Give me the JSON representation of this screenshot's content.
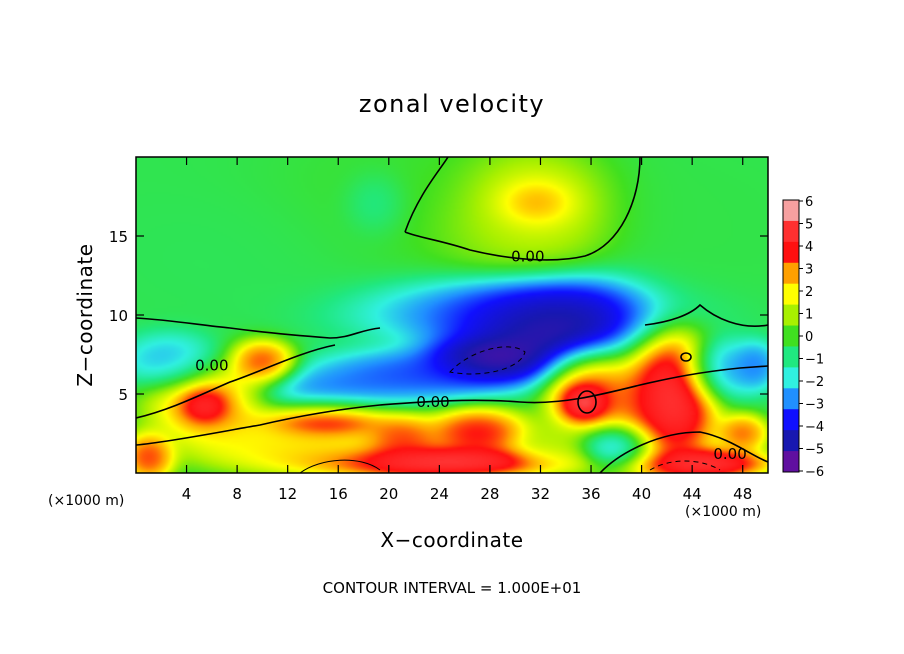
{
  "chart_data": {
    "type": "heatmap",
    "title": "zonal velocity",
    "xlabel": "X−coordinate",
    "ylabel": "Z−coordinate",
    "x_unit_left": "(×1000 m)",
    "x_unit_right": "(×1000 m)",
    "footer": "CONTOUR INTERVAL = 1.000E+01",
    "xlim": [
      0,
      50
    ],
    "ylim": [
      0,
      20
    ],
    "x_ticks": [
      4,
      8,
      12,
      16,
      20,
      24,
      28,
      32,
      36,
      40,
      44,
      48
    ],
    "y_ticks": [
      5,
      10,
      15
    ],
    "colorbar": {
      "range": [
        -6,
        6
      ],
      "ticks": [
        6,
        5,
        4,
        3,
        2,
        1,
        0,
        -1,
        -2,
        -3,
        -4,
        -5,
        -6
      ],
      "tick_labels": [
        "6",
        "5",
        "4",
        "3",
        "2",
        "1",
        "0",
        "−1",
        "−2",
        "−3",
        "−4",
        "−5",
        "−6"
      ],
      "colors": [
        "#f6a0a0",
        "#ff3030",
        "#ff1010",
        "#ffa000",
        "#ffff00",
        "#a8f000",
        "#40e020",
        "#20e880",
        "#30f0e0",
        "#2090ff",
        "#1010ff",
        "#1818b0",
        "#6010a0"
      ]
    },
    "contour_labels": [
      {
        "x": 31,
        "y": 13.7,
        "text": "0.00"
      },
      {
        "x": 6,
        "y": 6.8,
        "text": "0.00"
      },
      {
        "x": 23.5,
        "y": 4.5,
        "text": "0.00"
      },
      {
        "x": 47,
        "y": 1.2,
        "text": "0.00"
      }
    ],
    "blobs": [
      {
        "x": 25,
        "y": 17,
        "rx": 14,
        "ry": 5,
        "v": 0
      },
      {
        "x": 8,
        "y": 14,
        "rx": 10,
        "ry": 4,
        "v": -0.6
      },
      {
        "x": 19,
        "y": 17,
        "rx": 2.5,
        "ry": 2,
        "v": -1.8
      },
      {
        "x": 46,
        "y": 15,
        "rx": 8,
        "ry": 5,
        "v": -0.4
      },
      {
        "x": 31,
        "y": 17,
        "rx": 6,
        "ry": 3.4,
        "v": 3.6
      },
      {
        "x": 31.5,
        "y": 17,
        "rx": 3,
        "ry": 1.5,
        "v": 5.2
      },
      {
        "x": 30,
        "y": 15,
        "rx": 7,
        "ry": 2.5,
        "v": 1.2
      },
      {
        "x": 30,
        "y": 10.3,
        "rx": 12,
        "ry": 2.2,
        "v": -4.3
      },
      {
        "x": 33,
        "y": 9.5,
        "rx": 8,
        "ry": 2.8,
        "v": -7.5
      },
      {
        "x": 28,
        "y": 7.2,
        "rx": 5,
        "ry": 1.6,
        "v": -7
      },
      {
        "x": 22,
        "y": 6.2,
        "rx": 8,
        "ry": 1.6,
        "v": -4.4
      },
      {
        "x": 15,
        "y": 4.8,
        "rx": 6,
        "ry": 1.6,
        "v": -4
      },
      {
        "x": 3,
        "y": 7,
        "rx": 4,
        "ry": 1.8,
        "v": -3.6
      },
      {
        "x": 6,
        "y": 4.5,
        "rx": 5,
        "ry": 2.8,
        "v": 4.2
      },
      {
        "x": 5.5,
        "y": 4.3,
        "rx": 2,
        "ry": 1.2,
        "v": 7
      },
      {
        "x": 10,
        "y": 7,
        "rx": 2.5,
        "ry": 1.4,
        "v": 5
      },
      {
        "x": 15,
        "y": 3.5,
        "rx": 5,
        "ry": 1.3,
        "v": 7
      },
      {
        "x": 13,
        "y": 1.5,
        "rx": 8,
        "ry": 1.6,
        "v": 3
      },
      {
        "x": 21,
        "y": 2,
        "rx": 3,
        "ry": 1.7,
        "v": 5
      },
      {
        "x": 27,
        "y": 2.5,
        "rx": 4,
        "ry": 1.6,
        "v": 5.5
      },
      {
        "x": 24,
        "y": 0.7,
        "rx": 10,
        "ry": 1,
        "v": 7
      },
      {
        "x": 36,
        "y": 5,
        "rx": 3.5,
        "ry": 2.8,
        "v": 5
      },
      {
        "x": 35.5,
        "y": 4.5,
        "rx": 1.8,
        "ry": 1.2,
        "v": 7.5
      },
      {
        "x": 42.5,
        "y": 5,
        "rx": 3,
        "ry": 3.8,
        "v": 7.5
      },
      {
        "x": 41.5,
        "y": 4.5,
        "rx": 4.5,
        "ry": 4.5,
        "v": 4.5
      },
      {
        "x": 46,
        "y": 6.5,
        "rx": 3,
        "ry": 2,
        "v": -4
      },
      {
        "x": 49,
        "y": 6.8,
        "rx": 1.8,
        "ry": 1.5,
        "v": -3.8
      },
      {
        "x": 38,
        "y": 1.8,
        "rx": 3,
        "ry": 1.4,
        "v": -4
      },
      {
        "x": 45,
        "y": 0.6,
        "rx": 5,
        "ry": 1,
        "v": 6.8
      },
      {
        "x": 48,
        "y": 2.5,
        "rx": 2,
        "ry": 1.2,
        "v": 4.5
      },
      {
        "x": 1,
        "y": 1,
        "rx": 2,
        "ry": 1.5,
        "v": 5
      },
      {
        "x": 33,
        "y": 1.5,
        "rx": 3,
        "ry": 1.5,
        "v": 1.5
      }
    ]
  }
}
